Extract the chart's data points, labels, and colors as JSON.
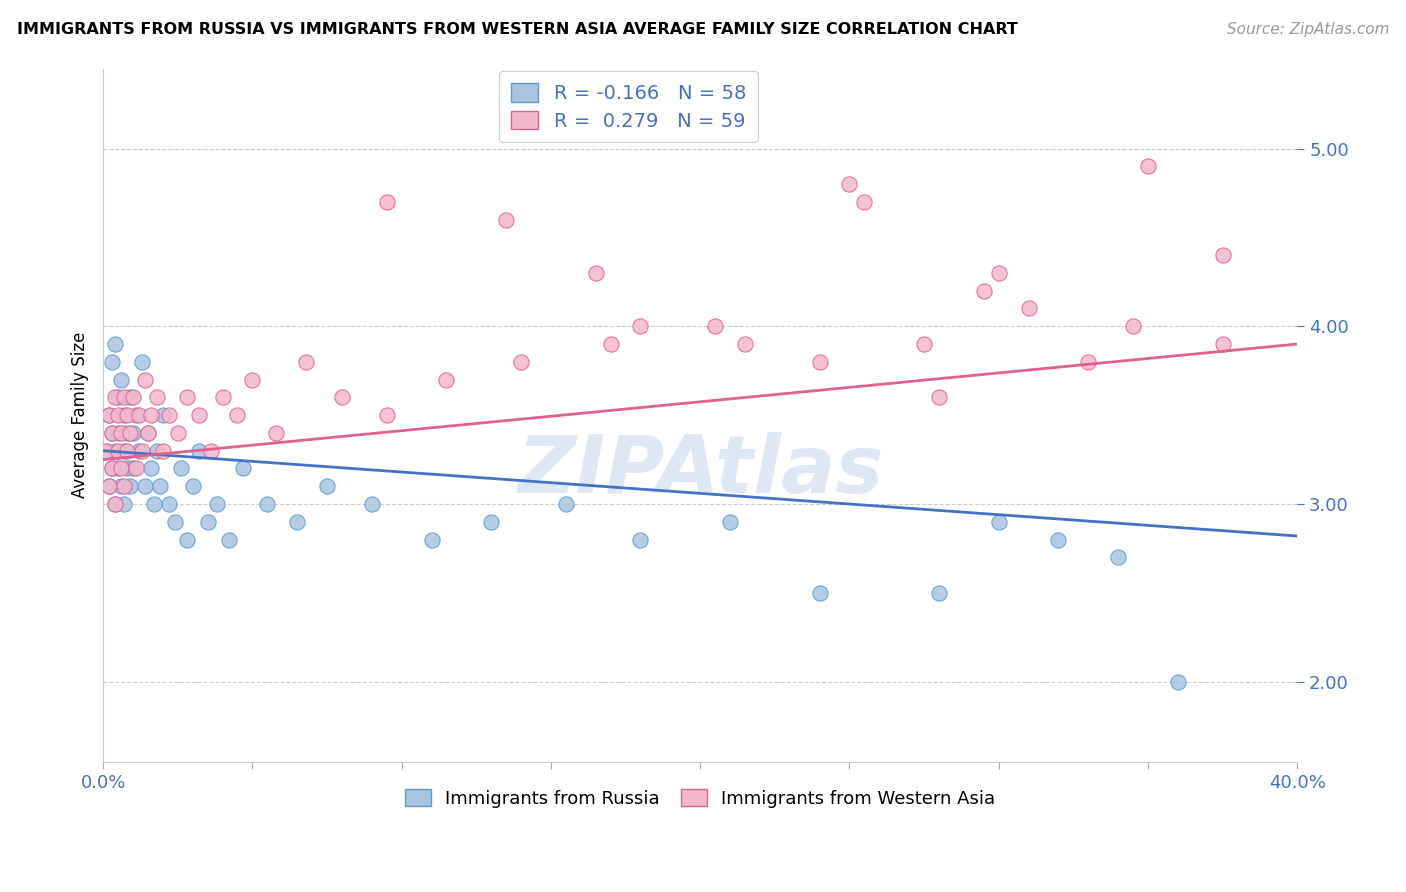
{
  "title": "IMMIGRANTS FROM RUSSIA VS IMMIGRANTS FROM WESTERN ASIA AVERAGE FAMILY SIZE CORRELATION CHART",
  "source": "Source: ZipAtlas.com",
  "ylabel": "Average Family Size",
  "xlim": [
    0.0,
    0.4
  ],
  "ylim": [
    1.55,
    5.45
  ],
  "yticks": [
    2.0,
    3.0,
    4.0,
    5.0
  ],
  "xticks": [
    0.0,
    0.05,
    0.1,
    0.15,
    0.2,
    0.25,
    0.3,
    0.35,
    0.4
  ],
  "russia_color": "#aac4e0",
  "russia_edge_color": "#5b9bd5",
  "western_asia_color": "#f4b8cc",
  "western_asia_edge_color": "#e06090",
  "russia_line_color": "#4472c4",
  "western_asia_line_color": "#e06090",
  "russia_R": -0.166,
  "russia_N": 58,
  "western_asia_R": 0.279,
  "western_asia_N": 59,
  "russia_trend_y0": 3.3,
  "russia_trend_y1": 2.82,
  "western_asia_trend_y0": 3.25,
  "western_asia_trend_y1": 3.9,
  "legend_label_bottom_russia": "Immigrants from Russia",
  "legend_label_bottom_western_asia": "Immigrants from Western Asia",
  "watermark": "ZIPAtlas",
  "russia_x": [
    0.001,
    0.002,
    0.002,
    0.003,
    0.003,
    0.003,
    0.004,
    0.004,
    0.004,
    0.005,
    0.005,
    0.005,
    0.006,
    0.006,
    0.007,
    0.007,
    0.007,
    0.008,
    0.008,
    0.009,
    0.009,
    0.01,
    0.01,
    0.011,
    0.012,
    0.013,
    0.014,
    0.015,
    0.016,
    0.017,
    0.018,
    0.019,
    0.02,
    0.022,
    0.024,
    0.026,
    0.028,
    0.03,
    0.032,
    0.035,
    0.038,
    0.042,
    0.047,
    0.055,
    0.065,
    0.075,
    0.09,
    0.11,
    0.13,
    0.155,
    0.18,
    0.21,
    0.24,
    0.28,
    0.3,
    0.32,
    0.34,
    0.36
  ],
  "russia_y": [
    3.3,
    3.5,
    3.1,
    3.8,
    3.4,
    3.2,
    3.9,
    3.3,
    3.0,
    3.6,
    3.2,
    3.4,
    3.1,
    3.7,
    3.5,
    3.3,
    3.0,
    3.4,
    3.2,
    3.6,
    3.1,
    3.4,
    3.2,
    3.5,
    3.3,
    3.8,
    3.1,
    3.4,
    3.2,
    3.0,
    3.3,
    3.1,
    3.5,
    3.0,
    2.9,
    3.2,
    2.8,
    3.1,
    3.3,
    2.9,
    3.0,
    2.8,
    3.2,
    3.0,
    2.9,
    3.1,
    3.0,
    2.8,
    2.9,
    3.0,
    2.8,
    2.9,
    2.5,
    2.5,
    2.9,
    2.8,
    2.7,
    2.0
  ],
  "western_asia_x": [
    0.001,
    0.002,
    0.002,
    0.003,
    0.003,
    0.004,
    0.004,
    0.005,
    0.005,
    0.006,
    0.006,
    0.007,
    0.007,
    0.008,
    0.008,
    0.009,
    0.01,
    0.011,
    0.012,
    0.013,
    0.014,
    0.015,
    0.016,
    0.018,
    0.02,
    0.022,
    0.025,
    0.028,
    0.032,
    0.036,
    0.04,
    0.045,
    0.05,
    0.058,
    0.068,
    0.08,
    0.095,
    0.115,
    0.14,
    0.17,
    0.205,
    0.24,
    0.275,
    0.31,
    0.345,
    0.375,
    0.135,
    0.165,
    0.295,
    0.33,
    0.255,
    0.18,
    0.095,
    0.215,
    0.25,
    0.3,
    0.35,
    0.28,
    0.375
  ],
  "western_asia_y": [
    3.3,
    3.5,
    3.1,
    3.4,
    3.2,
    3.6,
    3.0,
    3.3,
    3.5,
    3.2,
    3.4,
    3.6,
    3.1,
    3.5,
    3.3,
    3.4,
    3.6,
    3.2,
    3.5,
    3.3,
    3.7,
    3.4,
    3.5,
    3.6,
    3.3,
    3.5,
    3.4,
    3.6,
    3.5,
    3.3,
    3.6,
    3.5,
    3.7,
    3.4,
    3.8,
    3.6,
    3.5,
    3.7,
    3.8,
    3.9,
    4.0,
    3.8,
    3.9,
    4.1,
    4.0,
    3.9,
    4.6,
    4.3,
    4.2,
    3.8,
    4.7,
    4.0,
    4.7,
    3.9,
    4.8,
    4.3,
    4.9,
    3.6,
    4.4
  ]
}
